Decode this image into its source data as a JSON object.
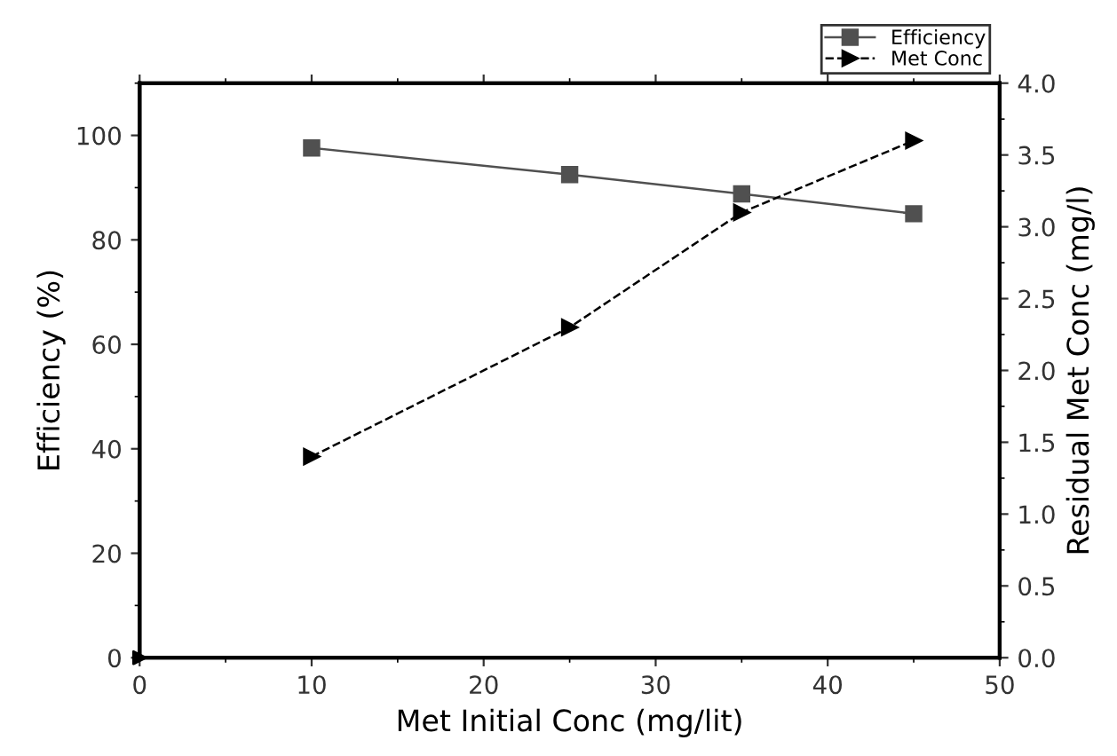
{
  "chart_data": {
    "type": "line",
    "xlabel": "Met Initial Conc (mg/lit)",
    "ylabel": "Efficiency (%)",
    "y2label": "Residual Met Conc (mg/l)",
    "xlim": [
      0,
      50
    ],
    "xticks": [
      0,
      10,
      20,
      30,
      40,
      50
    ],
    "ylim": [
      0,
      110
    ],
    "yticks": [
      0,
      20,
      40,
      60,
      80,
      100
    ],
    "y2lim": [
      0,
      4.0
    ],
    "y2ticks": [
      {
        "value": 0,
        "label": "0.0"
      },
      0.5,
      {
        "value": 1,
        "label": "1.0"
      },
      1.5,
      {
        "value": 2,
        "label": "2.0"
      },
      2.5,
      {
        "value": 3,
        "label": "3.0"
      },
      3.5,
      {
        "value": 4,
        "label": "4.0"
      }
    ],
    "legend": "top right",
    "grid": false,
    "series": [
      {
        "name": "Efficiency",
        "color": "#505050",
        "x": [
          10,
          25,
          35,
          45
        ],
        "values": [
          97.6,
          92.5,
          88.8,
          85.0
        ],
        "marker": "square",
        "line_style": "solid"
      },
      {
        "name": "Met Conc",
        "color": "#000000",
        "x": [
          10,
          25,
          35,
          45
        ],
        "values": [
          1.4,
          2.3,
          3.1,
          3.6
        ],
        "axis": "y2",
        "marker": "triangle",
        "line_style": "dashed"
      },
      {
        "type": "scatter",
        "color": "#000000",
        "x": [
          0
        ],
        "values": [
          0
        ],
        "marker": "triangle"
      }
    ]
  }
}
